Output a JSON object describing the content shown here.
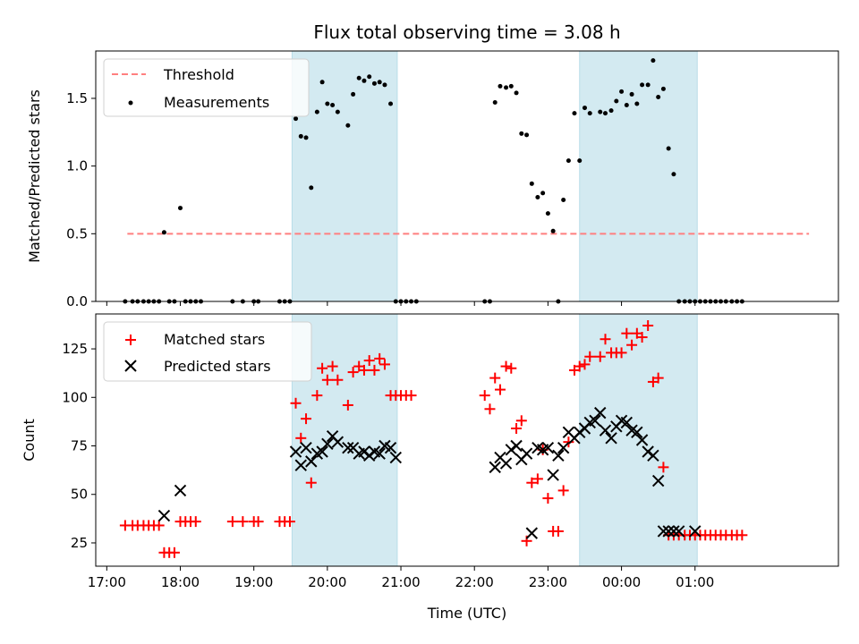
{
  "chart_data": {
    "type": "scatter",
    "title": "Flux total observing time = 3.08 h",
    "xlabel": "Time (UTC)",
    "x_tick_labels": [
      "17:00",
      "18:00",
      "19:00",
      "20:00",
      "21:00",
      "22:00",
      "23:00",
      "00:00",
      "01:00"
    ],
    "x_tick_values_hours": [
      17,
      18,
      19,
      20,
      21,
      22,
      23,
      24,
      25
    ],
    "xlim_hours": [
      16.85,
      26.95
    ],
    "shaded_intervals_hours": [
      [
        19.52,
        20.95
      ],
      [
        23.43,
        25.03
      ]
    ],
    "shade_color": "#d3eaf1",
    "top_panel": {
      "ylabel": "Matched/Predicted stars",
      "ylim": [
        0,
        1.85
      ],
      "yticks": [
        0,
        0.5,
        1,
        1.5
      ],
      "ytick_labels": [
        "0.0",
        "0.5",
        "1.0",
        "1.5"
      ],
      "threshold": {
        "name": "Threshold",
        "value": 0.5,
        "x_range_hours": [
          17.28,
          26.55
        ],
        "color": "#ff7f7f"
      },
      "measurements": {
        "name": "Measurements",
        "color": "#000000",
        "x": [
          17.25,
          17.35,
          17.42,
          17.5,
          17.57,
          17.64,
          17.71,
          17.78,
          17.85,
          17.92,
          18.0,
          18.07,
          18.14,
          18.21,
          18.28,
          18.71,
          18.85,
          19.0,
          19.06,
          19.35,
          19.42,
          19.49,
          19.57,
          19.64,
          19.71,
          19.78,
          19.86,
          19.93,
          20.0,
          20.07,
          20.14,
          20.28,
          20.35,
          20.43,
          20.5,
          20.57,
          20.64,
          20.71,
          20.78,
          20.86,
          20.93,
          21.0,
          21.07,
          21.14,
          21.21,
          22.14,
          22.21,
          22.28,
          22.35,
          22.43,
          22.5,
          22.57,
          22.64,
          22.71,
          22.78,
          22.86,
          22.93,
          23.0,
          23.07,
          23.14,
          23.21,
          23.28,
          23.36,
          23.43,
          23.5,
          23.57,
          23.71,
          23.78,
          23.86,
          23.93,
          24.0,
          24.07,
          24.14,
          24.21,
          24.28,
          24.36,
          24.43,
          24.5,
          24.57,
          24.64,
          24.71,
          24.78,
          24.86,
          24.93,
          25.0,
          25.07,
          25.14,
          25.21,
          25.28,
          25.35,
          25.42,
          25.5,
          25.57,
          25.64
        ],
        "y": [
          0,
          0,
          0,
          0,
          0,
          0,
          0,
          0.51,
          0,
          0,
          0.69,
          0,
          0,
          0,
          0,
          0,
          0,
          0,
          0,
          0,
          0,
          0,
          1.35,
          1.22,
          1.21,
          0.84,
          1.4,
          1.62,
          1.46,
          1.45,
          1.4,
          1.3,
          1.53,
          1.65,
          1.63,
          1.66,
          1.61,
          1.62,
          1.6,
          1.46,
          0,
          0,
          0,
          0,
          0,
          0,
          0,
          1.47,
          1.59,
          1.58,
          1.59,
          1.54,
          1.24,
          1.23,
          0.87,
          0.77,
          0.8,
          0.65,
          0.52,
          0,
          0.75,
          1.04,
          1.39,
          1.04,
          1.43,
          1.39,
          1.4,
          1.39,
          1.41,
          1.48,
          1.55,
          1.45,
          1.53,
          1.46,
          1.6,
          1.6,
          1.78,
          1.51,
          1.57,
          1.13,
          0.94,
          0,
          0,
          0,
          0,
          0,
          0,
          0,
          0,
          0,
          0,
          0,
          0,
          0
        ]
      }
    },
    "bottom_panel": {
      "ylabel": "Count",
      "ylim": [
        13,
        143
      ],
      "yticks": [
        25,
        50,
        75,
        100,
        125
      ],
      "ytick_labels": [
        "25",
        "50",
        "75",
        "100",
        "125"
      ],
      "series": [
        {
          "name": "Matched stars",
          "marker": "plus",
          "color": "#ff0000",
          "x": [
            17.25,
            17.35,
            17.42,
            17.5,
            17.57,
            17.64,
            17.71,
            17.78,
            17.85,
            17.92,
            18.0,
            18.07,
            18.14,
            18.21,
            18.71,
            18.85,
            19.0,
            19.06,
            19.35,
            19.42,
            19.49,
            19.57,
            19.64,
            19.71,
            19.78,
            19.86,
            19.93,
            20.0,
            20.07,
            20.14,
            20.28,
            20.35,
            20.43,
            20.5,
            20.57,
            20.64,
            20.71,
            20.78,
            20.86,
            20.93,
            21.0,
            21.07,
            21.14,
            22.14,
            22.21,
            22.28,
            22.35,
            22.43,
            22.5,
            22.57,
            22.64,
            22.71,
            22.78,
            22.86,
            22.93,
            23.0,
            23.07,
            23.14,
            23.21,
            23.28,
            23.36,
            23.43,
            23.5,
            23.57,
            23.71,
            23.78,
            23.86,
            23.93,
            24.0,
            24.07,
            24.14,
            24.21,
            24.28,
            24.36,
            24.43,
            24.5,
            24.57,
            24.64,
            24.71,
            24.78,
            24.86,
            24.93,
            25.0,
            25.07,
            25.14,
            25.21,
            25.28,
            25.35,
            25.42,
            25.5,
            25.57,
            25.64
          ],
          "y": [
            34,
            34,
            34,
            34,
            34,
            34,
            34,
            20,
            20,
            20,
            36,
            36,
            36,
            36,
            36,
            36,
            36,
            36,
            36,
            36,
            36,
            97,
            79,
            89,
            56,
            101,
            115,
            109,
            116,
            109,
            96,
            113,
            116,
            114,
            119,
            114,
            120,
            117,
            101,
            101,
            101,
            101,
            101,
            101,
            94,
            110,
            104,
            116,
            115,
            84,
            88,
            26,
            56,
            58,
            73,
            48,
            31,
            31,
            52,
            77,
            114,
            116,
            117,
            121,
            121,
            130,
            123,
            123,
            123,
            133,
            127,
            133,
            131,
            137,
            108,
            110,
            64,
            29,
            29,
            29,
            29,
            29,
            29,
            29,
            29,
            29,
            29,
            29,
            29,
            29,
            29,
            29
          ],
          "y_note": ""
        },
        {
          "name": "Predicted stars",
          "marker": "x",
          "color": "#000000",
          "x": [
            17.78,
            18.0,
            19.57,
            19.64,
            19.71,
            19.78,
            19.86,
            19.93,
            20.0,
            20.07,
            20.14,
            20.28,
            20.35,
            20.43,
            20.5,
            20.57,
            20.64,
            20.71,
            20.78,
            20.86,
            20.93,
            22.28,
            22.35,
            22.43,
            22.5,
            22.57,
            22.64,
            22.71,
            22.78,
            22.86,
            22.93,
            23.0,
            23.07,
            23.14,
            23.21,
            23.28,
            23.36,
            23.43,
            23.5,
            23.57,
            23.64,
            23.71,
            23.78,
            23.86,
            23.93,
            24.0,
            24.07,
            24.14,
            24.21,
            24.28,
            24.36,
            24.43,
            24.5,
            24.57,
            24.64,
            24.71,
            24.78,
            25.0
          ],
          "y": [
            39,
            52,
            72,
            65,
            74,
            67,
            71,
            72,
            76,
            80,
            77,
            74,
            74,
            71,
            72,
            70,
            72,
            71,
            75,
            74,
            69,
            64,
            69,
            66,
            73,
            75,
            68,
            71,
            30,
            74,
            73,
            74,
            60,
            70,
            74,
            82,
            79,
            82,
            84,
            87,
            88,
            92,
            83,
            79,
            85,
            88,
            87,
            83,
            82,
            78,
            72,
            70,
            57,
            31,
            31,
            31,
            31,
            31
          ]
        }
      ]
    }
  }
}
